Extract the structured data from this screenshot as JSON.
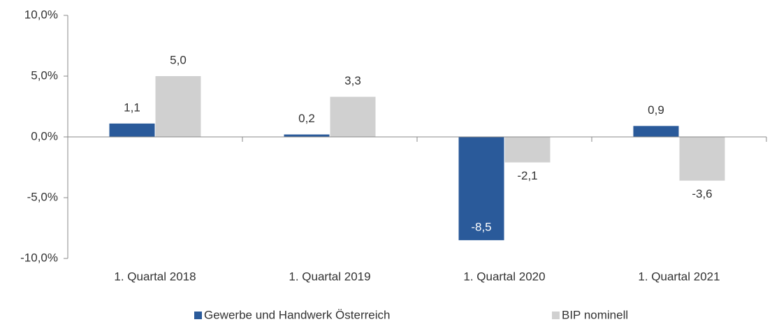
{
  "chart_data": {
    "type": "bar",
    "categories": [
      "1. Quartal 2018",
      "1. Quartal 2019",
      "1. Quartal 2020",
      "1. Quartal 2021"
    ],
    "series": [
      {
        "name": "Gewerbe und Handwerk Österreich",
        "color": "#2a5a9a",
        "values": [
          1.1,
          0.2,
          -8.5,
          0.9
        ],
        "value_labels": [
          "1,1",
          "0,2",
          "-8,5",
          "0,9"
        ]
      },
      {
        "name": "BIP nominell",
        "color": "#d0d0d0",
        "values": [
          5.0,
          3.3,
          -2.1,
          -3.6
        ],
        "value_labels": [
          "5,0",
          "3,3",
          "-2,1",
          "-3,6"
        ]
      }
    ],
    "ylim": [
      -10,
      10
    ],
    "yticks": [
      {
        "value": -10,
        "label": "-10,0%"
      },
      {
        "value": -5,
        "label": "-5,0%"
      },
      {
        "value": 0,
        "label": "0,0%"
      },
      {
        "value": 5,
        "label": "5,0%"
      },
      {
        "value": 10,
        "label": "10,0%"
      }
    ],
    "grid": false,
    "legend": "bottom"
  }
}
